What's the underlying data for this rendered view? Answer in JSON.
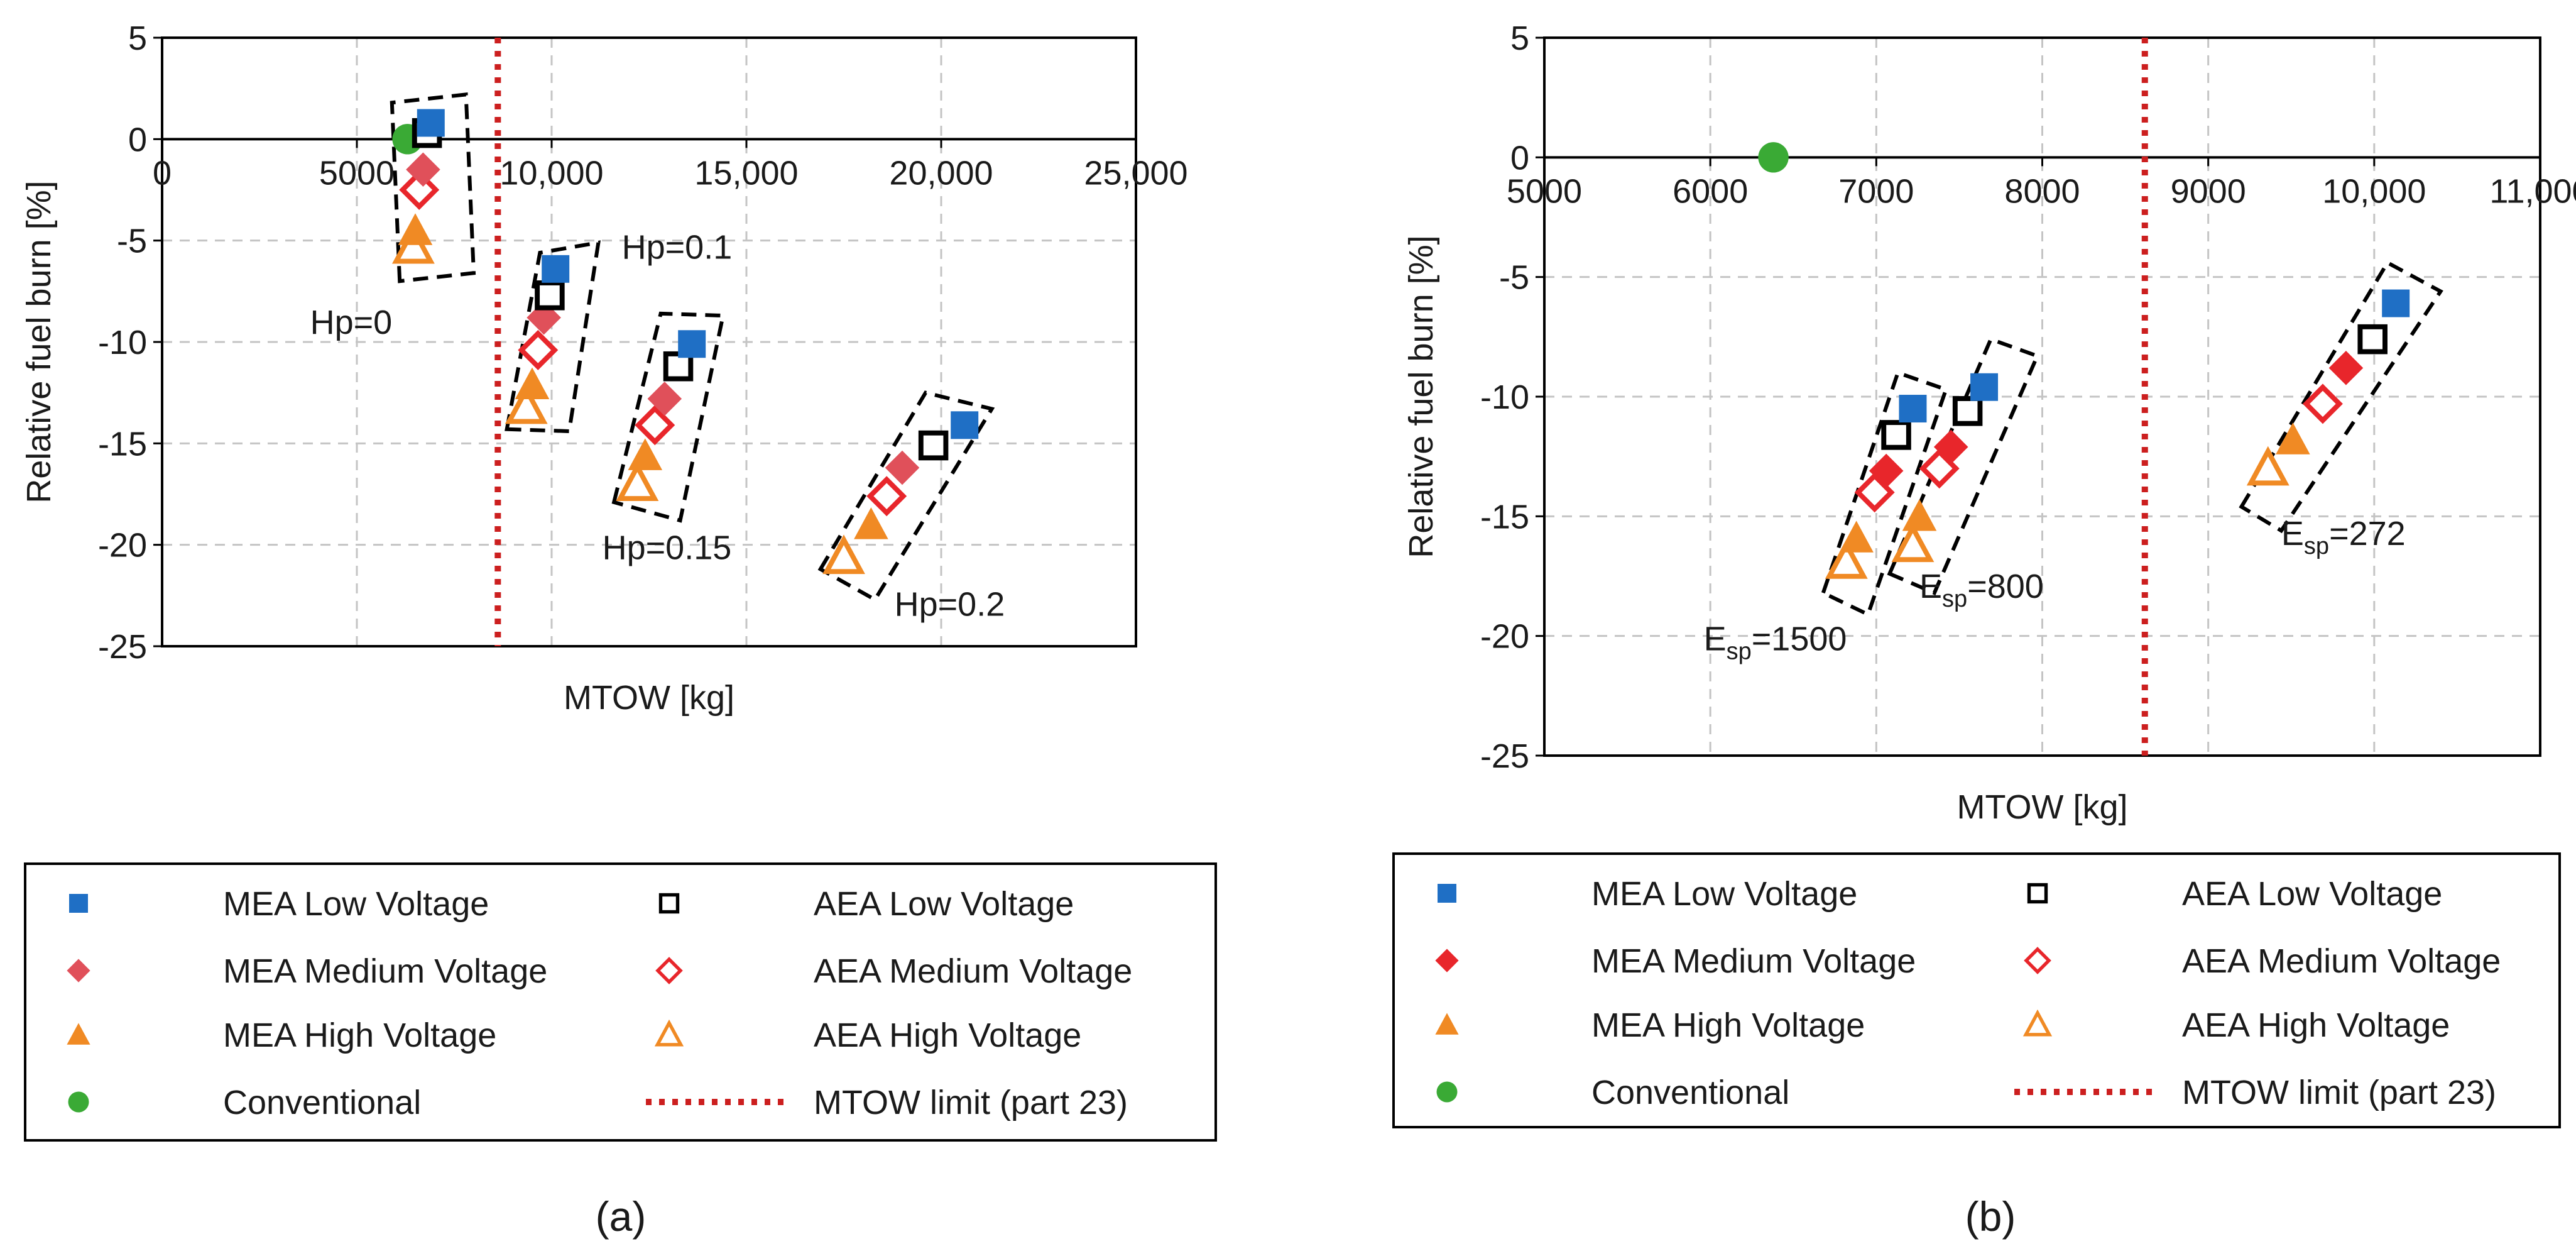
{
  "figure": {
    "panel_labels": [
      "(a)",
      "(b)"
    ]
  },
  "colors": {
    "mea_low": "#1f6fc5",
    "mea_medium": "#e8262b",
    "mea_medium_a": "#e0505a",
    "aea_medium": "#e8262b",
    "high": "#f08a24",
    "conventional": "#3aaa35",
    "limit": "#cc1f1f",
    "black": "#000000",
    "grid": "#c4c4c4"
  },
  "chart_data": [
    {
      "type": "scatter",
      "panel": "(a)",
      "title": "",
      "xlabel": "MTOW [kg]",
      "ylabel": "Relative fuel burn [%]",
      "xlim": [
        0,
        25000
      ],
      "ylim": [
        -25,
        5
      ],
      "xticks": [
        0,
        5000,
        10000,
        15000,
        20000,
        25000
      ],
      "xtick_labels": [
        "0",
        "5000",
        "10,000",
        "15,000",
        "20,000",
        "25,000"
      ],
      "yticks": [
        5,
        0,
        -5,
        -10,
        -15,
        -20,
        -25
      ],
      "ytick_labels": [
        "5",
        "0",
        "-5",
        "-10",
        "-15",
        "-20",
        "-25"
      ],
      "grid": true,
      "mtow_limit": 8618,
      "series": [
        {
          "name": "MEA Low  Voltage",
          "marker": "square-filled",
          "color_key": "mea_low",
          "points": [
            {
              "x": 6900,
              "y": 0.8
            },
            {
              "x": 10100,
              "y": -6.4
            },
            {
              "x": 13600,
              "y": -10.1
            },
            {
              "x": 20600,
              "y": -14.1
            }
          ]
        },
        {
          "name": "AEA Low  Voltage",
          "marker": "square-open",
          "color_key": "black",
          "points": [
            {
              "x": 6800,
              "y": 0.3
            },
            {
              "x": 9950,
              "y": -7.7
            },
            {
              "x": 13250,
              "y": -11.2
            },
            {
              "x": 19800,
              "y": -15.1
            }
          ]
        },
        {
          "name": "MEA Medium Voltage",
          "marker": "diamond-filled",
          "color_key": "mea_medium_a",
          "points": [
            {
              "x": 6700,
              "y": -1.5
            },
            {
              "x": 9800,
              "y": -8.8
            },
            {
              "x": 12900,
              "y": -12.8
            },
            {
              "x": 19000,
              "y": -16.2
            }
          ]
        },
        {
          "name": "AEA Medium Voltage",
          "marker": "diamond-open",
          "color_key": "aea_medium",
          "points": [
            {
              "x": 6600,
              "y": -2.5
            },
            {
              "x": 9650,
              "y": -10.4
            },
            {
              "x": 12650,
              "y": -14.1
            },
            {
              "x": 18600,
              "y": -17.6
            }
          ]
        },
        {
          "name": "MEA High Voltage",
          "marker": "triangle-filled",
          "color_key": "high",
          "points": [
            {
              "x": 6500,
              "y": -4.5
            },
            {
              "x": 9500,
              "y": -12.1
            },
            {
              "x": 12400,
              "y": -15.6
            },
            {
              "x": 18200,
              "y": -19.0
            }
          ]
        },
        {
          "name": "AEA High Voltage",
          "marker": "triangle-open",
          "color_key": "high",
          "points": [
            {
              "x": 6450,
              "y": -5.3
            },
            {
              "x": 9350,
              "y": -13.2
            },
            {
              "x": 12200,
              "y": -17.0
            },
            {
              "x": 17500,
              "y": -20.6
            }
          ]
        },
        {
          "name": "Conventional",
          "marker": "circle-filled",
          "color_key": "conventional",
          "points": [
            {
              "x": 6300,
              "y": 0.0
            }
          ]
        }
      ],
      "groups": [
        {
          "label": "Hp=0",
          "corners": [
            [
              6100,
              -7.0
            ],
            [
              5900,
              1.8
            ],
            [
              7800,
              2.2
            ],
            [
              8000,
              -6.6
            ]
          ]
        },
        {
          "label": "Hp=0.1",
          "corners": [
            [
              8850,
              -14.3
            ],
            [
              9700,
              -5.6
            ],
            [
              11200,
              -5.1
            ],
            [
              10450,
              -14.4
            ]
          ]
        },
        {
          "label": "Hp=0.15",
          "corners": [
            [
              11600,
              -17.9
            ],
            [
              12800,
              -8.6
            ],
            [
              14400,
              -8.7
            ],
            [
              13300,
              -18.8
            ]
          ]
        },
        {
          "label": "Hp=0.2",
          "corners": [
            [
              16900,
              -21.2
            ],
            [
              19600,
              -12.5
            ],
            [
              21300,
              -13.3
            ],
            [
              18300,
              -22.7
            ]
          ]
        }
      ],
      "annotations": [
        {
          "text": "Hp=0",
          "x": 3800,
          "y": -9.6
        },
        {
          "text": "Hp=0.1",
          "x": 11800,
          "y": -5.9
        },
        {
          "text": "Hp=0.15",
          "x": 11300,
          "y": -20.7
        },
        {
          "text": "Hp=0.2",
          "x": 18800,
          "y": -23.5
        }
      ],
      "legend": {
        "placement": "below",
        "entries": [
          "MEA Low  Voltage",
          "AEA Low  Voltage",
          "MEA Medium Voltage",
          "AEA Medium Voltage",
          "MEA High Voltage",
          "AEA High Voltage",
          "Conventional",
          "MTOW limit (part 23)"
        ]
      }
    },
    {
      "type": "scatter",
      "panel": "(b)",
      "title": "",
      "xlabel": "MTOW [kg]",
      "ylabel": "Relative fuel burn [%]",
      "xlim": [
        5000,
        11000
      ],
      "ylim": [
        -25,
        5
      ],
      "xticks": [
        5000,
        6000,
        7000,
        8000,
        9000,
        10000,
        11000
      ],
      "xtick_labels": [
        "5000",
        "6000",
        "7000",
        "8000",
        "9000",
        "10,000",
        "11,000"
      ],
      "yticks": [
        5,
        0,
        -5,
        -10,
        -15,
        -20,
        -25
      ],
      "ytick_labels": [
        "5",
        "0",
        "-5",
        "-10",
        "-15",
        "-20",
        "-25"
      ],
      "grid": true,
      "mtow_limit": 8618,
      "series": [
        {
          "name": "MEA Low  Voltage",
          "marker": "square-filled",
          "color_key": "mea_low",
          "points": [
            {
              "x": 7220,
              "y": -10.5
            },
            {
              "x": 7650,
              "y": -9.6
            },
            {
              "x": 10130,
              "y": -6.1
            }
          ]
        },
        {
          "name": "AEA Low  Voltage",
          "marker": "square-open",
          "color_key": "black",
          "points": [
            {
              "x": 7120,
              "y": -11.6
            },
            {
              "x": 7550,
              "y": -10.6
            },
            {
              "x": 9990,
              "y": -7.6
            }
          ]
        },
        {
          "name": "MEA Medium Voltage",
          "marker": "diamond-filled",
          "color_key": "mea_medium",
          "points": [
            {
              "x": 7060,
              "y": -13.1
            },
            {
              "x": 7450,
              "y": -12.1
            },
            {
              "x": 9830,
              "y": -8.8
            }
          ]
        },
        {
          "name": "AEA Medium Voltage",
          "marker": "diamond-open",
          "color_key": "aea_medium",
          "points": [
            {
              "x": 6990,
              "y": -14.0
            },
            {
              "x": 7380,
              "y": -13.0
            },
            {
              "x": 9690,
              "y": -10.3
            }
          ]
        },
        {
          "name": "MEA High Voltage",
          "marker": "triangle-filled",
          "color_key": "high",
          "points": [
            {
              "x": 6880,
              "y": -15.9
            },
            {
              "x": 7260,
              "y": -15.0
            },
            {
              "x": 9510,
              "y": -11.8
            }
          ]
        },
        {
          "name": "AEA High Voltage",
          "marker": "triangle-open",
          "color_key": "high",
          "points": [
            {
              "x": 6820,
              "y": -16.9
            },
            {
              "x": 7220,
              "y": -16.2
            },
            {
              "x": 9360,
              "y": -13.0
            }
          ]
        },
        {
          "name": "Conventional",
          "marker": "circle-filled",
          "color_key": "conventional",
          "points": [
            {
              "x": 6380,
              "y": 0.0
            }
          ]
        }
      ],
      "groups": [
        {
          "label": "Esp=1500",
          "corners": [
            [
              6680,
              -18.2
            ],
            [
              7130,
              -9.0
            ],
            [
              7420,
              -9.7
            ],
            [
              6950,
              -19.1
            ]
          ]
        },
        {
          "label": "Esp=800",
          "corners": [
            [
              7080,
              -17.4
            ],
            [
              7690,
              -7.6
            ],
            [
              7970,
              -8.3
            ],
            [
              7350,
              -18.2
            ]
          ]
        },
        {
          "label": "Esp=272",
          "corners": [
            [
              9200,
              -14.6
            ],
            [
              10080,
              -4.4
            ],
            [
              10400,
              -5.6
            ],
            [
              9440,
              -15.6
            ]
          ]
        }
      ],
      "annotations": [
        {
          "text": "E",
          "sub": "sp",
          "suffix": "=1500",
          "x": 5960,
          "y": -20.6
        },
        {
          "text": "E",
          "sub": "sp",
          "suffix": "=800",
          "x": 7260,
          "y": -18.4
        },
        {
          "text": "E",
          "sub": "sp",
          "suffix": "=272",
          "x": 9440,
          "y": -16.2
        }
      ],
      "legend": {
        "placement": "below",
        "entries": [
          "MEA Low  Voltage",
          "AEA Low  Voltage",
          "MEA Medium Voltage",
          "AEA Medium Voltage",
          "MEA High Voltage",
          "AEA High Voltage",
          "Conventional",
          "MTOW limit (part 23)"
        ]
      }
    }
  ]
}
